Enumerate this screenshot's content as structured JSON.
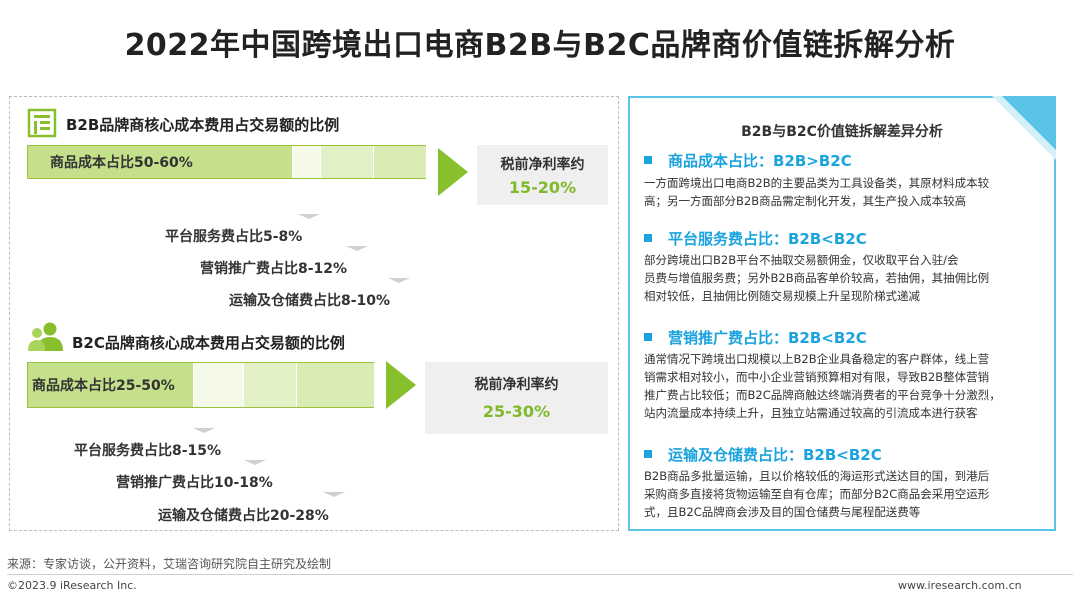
{
  "title": "2022年中国跨境出口电商B2B与B2C品牌商价值链拆解分析",
  "b2b": {
    "section_title": "B2B品牌商核心成本费用占交易额的比例",
    "section_icon": "building-icon",
    "main_cost": "商品成本占比50-60%",
    "margin_label": "税前净利率约",
    "margin_value": "15-20%",
    "items": [
      "平台服务费占比5-8%",
      "营销推广费占比8-12%",
      "运输及仓储费占比8-10%"
    ]
  },
  "b2c": {
    "section_title": "B2C品牌商核心成本费用占交易额的比例",
    "section_icon": "users-icon",
    "main_cost": "商品成本占比25-50%",
    "margin_label": "税前净利率约",
    "margin_value": "25-30%",
    "items": [
      "平台服务费占比8-15%",
      "营销推广费占比10-18%",
      "运输及仓储费占比20-28%"
    ]
  },
  "analysis": {
    "heading": "B2B与B2C价值链拆解差异分析",
    "sections": [
      {
        "title": "商品成本占比：B2B>B2C",
        "body": [
          "一方面跨境出口电商B2B的主要品类为工具设备类，其原材料成本较",
          "高；另一方面部分B2B商品需定制化开发，其生产投入成本较高"
        ]
      },
      {
        "title": "平台服务费占比：B2B<B2C",
        "body": [
          "部分跨境出口B2B平台不抽取交易额佣金，仅收取平台入驻/会",
          "员费与增值服务费；另外B2B商品客单价较高，若抽佣，其抽佣比例",
          "相对较低，且抽佣比例随交易规模上升呈现阶梯式递减"
        ]
      },
      {
        "title": "营销推广费占比：B2B<B2C",
        "body": [
          "通常情况下跨境出口规模以上B2B企业具备稳定的客户群体，线上营",
          "销需求相对较小，而中小企业营销预算相对有限，导致B2B整体营销",
          "推广费占比较低；而B2C品牌商触达终端消费者的平台竞争十分激烈，",
          "站内流量成本持续上升，且独立站需通过较高的引流成本进行获客"
        ]
      },
      {
        "title": "运输及仓储费占比：B2B<B2C",
        "body": [
          "B2B商品多批量运输，且以价格较低的海运形式送达目的国，到港后",
          "采购商多直接将货物运输至自有仓库；而部分B2C商品会采用空运形",
          "式，且B2C品牌商会涉及目的国仓储费与尾程配送费等"
        ]
      }
    ]
  },
  "colors": {
    "accent_blue": "#1aa3de",
    "panel_border": "#5ac3e8",
    "green_dark": "#88bf2d",
    "green_bar": "#c4e08b",
    "green_light": "#d9ecb4",
    "margin_green": "#7fba2a"
  },
  "footer": {
    "source": "来源：专家访谈，公开资料，艾瑞咨询研究院自主研究及绘制",
    "copyright": "©2023.9 iResearch Inc.",
    "website": "www.iresearch.com.cn"
  }
}
